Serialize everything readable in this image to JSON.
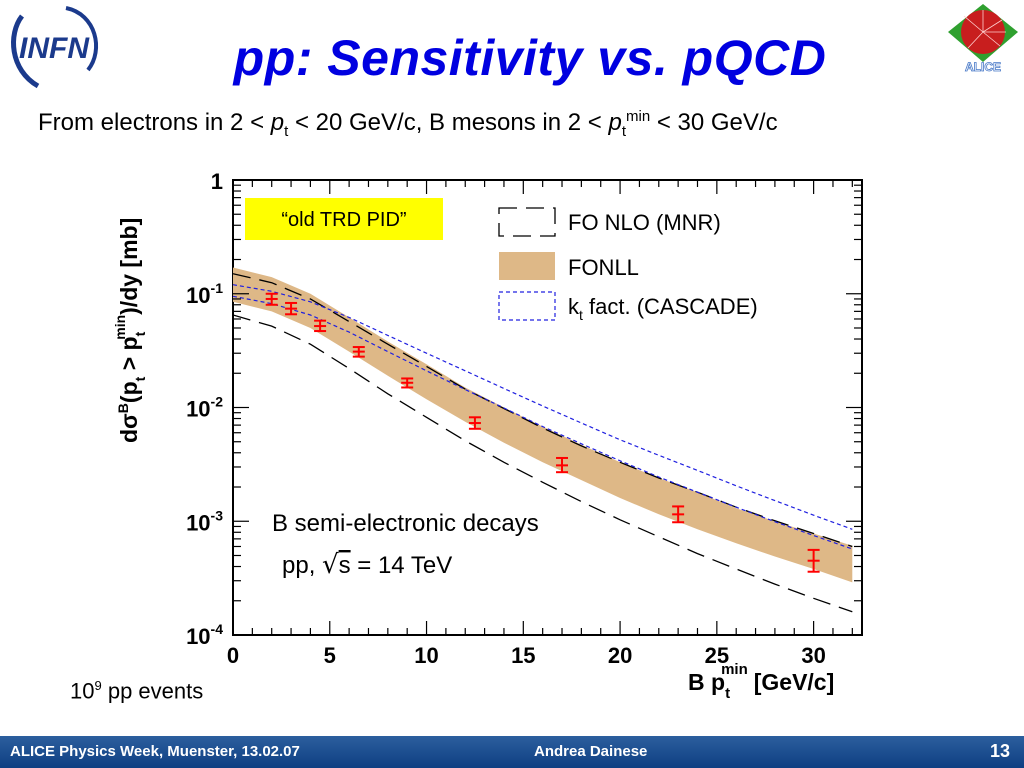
{
  "title": "pp: Sensitivity vs. pQCD",
  "subtitle": {
    "text1": "From electrons in 2 < ",
    "p": "p",
    "t": "t",
    "text2": " < 20 GeV/c, B mesons in 2 < ",
    "min": "min",
    "text3": " < 30 GeV/c"
  },
  "logos": {
    "left": "INFN",
    "right": "ALICE"
  },
  "events": {
    "base": "10",
    "exp": "9",
    "rest": " pp events"
  },
  "footer": {
    "left": "ALICE Physics Week, Muenster, 13.02.07",
    "center": "Andrea Dainese",
    "page": "13"
  },
  "colors": {
    "title": "#0000e0",
    "band": "#deb887",
    "data": "#ff0000",
    "cascade": "#2020e0",
    "highlight": "#ffff00",
    "footer": "#1a4a8a"
  },
  "chart_data": {
    "type": "line",
    "annotation_box": "“old TRD PID”",
    "annotation_text1": "B semi-electronic decays",
    "annotation_text2_pre": "pp, ",
    "annotation_text2_sqrt": "s",
    "annotation_text2_post": " = 14 TeV",
    "xlabel_main": "B p",
    "xlabel_sub": "t",
    "xlabel_sup": "min",
    "xlabel_unit": "[GeV/c]",
    "ylabel_main": "dσ",
    "ylabel_sup_B": "B",
    "ylabel_p": "(p",
    "ylabel_gt": " > p",
    "ylabel_tail": ")/dy [mb]",
    "ylabel_t": "t",
    "ylabel_min": "min",
    "xlim": [
      0,
      32.5
    ],
    "ylim": [
      0.0001,
      1
    ],
    "yscale": "log",
    "x_ticks": [
      0,
      5,
      10,
      15,
      20,
      25,
      30
    ],
    "y_ticks": [
      {
        "base": "1",
        "exp": ""
      },
      {
        "base": "10",
        "exp": "-1"
      },
      {
        "base": "10",
        "exp": "-2"
      },
      {
        "base": "10",
        "exp": "-3"
      },
      {
        "base": "10",
        "exp": "-4"
      }
    ],
    "legend": [
      {
        "name": "FO NLO (MNR)",
        "style": "dashed"
      },
      {
        "name": "FONLL",
        "style": "band"
      },
      {
        "name": "k",
        "sub": "t",
        "rest": " fact. (CASCADE)",
        "style": "dotted"
      }
    ],
    "x": [
      0,
      2,
      4,
      6,
      8,
      10,
      12,
      14,
      16,
      18,
      20,
      22,
      24,
      26,
      28,
      30,
      32
    ],
    "fonll_upper": [
      0.17,
      0.14,
      0.1,
      0.062,
      0.038,
      0.024,
      0.015,
      0.01,
      0.0068,
      0.0047,
      0.0033,
      0.0024,
      0.0018,
      0.0013,
      0.001,
      0.00078,
      0.00061
    ],
    "fonll_lower": [
      0.085,
      0.07,
      0.05,
      0.031,
      0.019,
      0.0118,
      0.0075,
      0.0049,
      0.0033,
      0.0023,
      0.0016,
      0.00115,
      0.00085,
      0.00064,
      0.00049,
      0.00038,
      0.00029
    ],
    "mnr_upper": [
      0.15,
      0.125,
      0.09,
      0.057,
      0.036,
      0.023,
      0.0145,
      0.0098,
      0.0066,
      0.0046,
      0.0033,
      0.0024,
      0.0018,
      0.00133,
      0.00101,
      0.00078,
      0.0006
    ],
    "mnr_lower": [
      0.065,
      0.052,
      0.036,
      0.022,
      0.0132,
      0.0082,
      0.0051,
      0.0033,
      0.0022,
      0.00149,
      0.00103,
      0.00073,
      0.00052,
      0.00038,
      0.00028,
      0.00021,
      0.00016
    ],
    "cascade_upper": [
      0.12,
      0.105,
      0.085,
      0.062,
      0.043,
      0.03,
      0.021,
      0.0147,
      0.0103,
      0.0073,
      0.0052,
      0.0038,
      0.0028,
      0.00205,
      0.00152,
      0.00113,
      0.00085
    ],
    "cascade_lower": [
      0.095,
      0.082,
      0.065,
      0.046,
      0.031,
      0.021,
      0.0144,
      0.0099,
      0.0068,
      0.0048,
      0.0034,
      0.00245,
      0.0018,
      0.00133,
      0.00099,
      0.00075,
      0.00057
    ],
    "data_points": [
      {
        "x": 2,
        "y": 0.09,
        "err_lo": 0.08,
        "err_hi": 0.1
      },
      {
        "x": 3,
        "y": 0.074,
        "err_lo": 0.066,
        "err_hi": 0.083
      },
      {
        "x": 4.5,
        "y": 0.052,
        "err_lo": 0.047,
        "err_hi": 0.058
      },
      {
        "x": 6.5,
        "y": 0.031,
        "err_lo": 0.028,
        "err_hi": 0.034
      },
      {
        "x": 9,
        "y": 0.0165,
        "err_lo": 0.015,
        "err_hi": 0.018
      },
      {
        "x": 12.5,
        "y": 0.0073,
        "err_lo": 0.0065,
        "err_hi": 0.0082
      },
      {
        "x": 17,
        "y": 0.0031,
        "err_lo": 0.0027,
        "err_hi": 0.0036
      },
      {
        "x": 23,
        "y": 0.00115,
        "err_lo": 0.00098,
        "err_hi": 0.00135
      },
      {
        "x": 30,
        "y": 0.00045,
        "err_lo": 0.00036,
        "err_hi": 0.00056
      }
    ]
  }
}
